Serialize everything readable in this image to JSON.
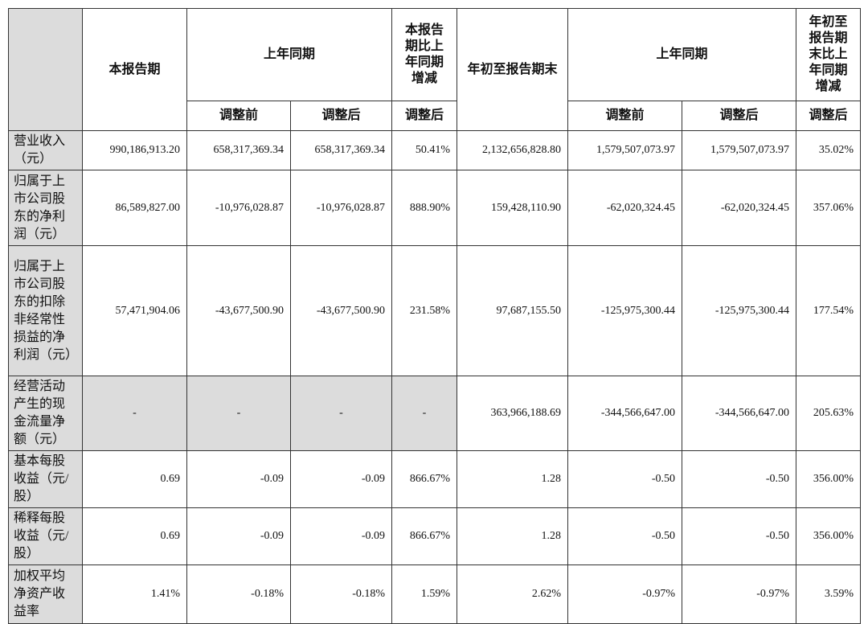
{
  "table": {
    "header_top": [
      "",
      "本报告期",
      "上年同期",
      "本报告期比上年同期增减",
      "年初至报告期末",
      "上年同期",
      "年初至报告期末比上年同期增减"
    ],
    "header_sub": [
      "调整前",
      "调整后",
      "调整后",
      "调整前",
      "调整后",
      "调整后"
    ],
    "rows": [
      {
        "label": "营业收入（元）",
        "values": [
          "990,186,913.20",
          "658,317,369.34",
          "658,317,369.34",
          "50.41%",
          "2,132,656,828.80",
          "1,579,507,073.97",
          "1,579,507,073.97",
          "35.02%"
        ]
      },
      {
        "label": "归属于上市公司股东的净利润（元）",
        "values": [
          "86,589,827.00",
          "-10,976,028.87",
          "-10,976,028.87",
          "888.90%",
          "159,428,110.90",
          "-62,020,324.45",
          "-62,020,324.45",
          "357.06%"
        ]
      },
      {
        "label": "归属于上市公司股东的扣除非经常性损益的净利润（元）",
        "values": [
          "57,471,904.06",
          "-43,677,500.90",
          "-43,677,500.90",
          "231.58%",
          "97,687,155.50",
          "-125,975,300.44",
          "-125,975,300.44",
          "177.54%"
        ]
      },
      {
        "label": "经营活动产生的现金流量净额（元）",
        "values": [
          "-",
          "-",
          "-",
          "-",
          "363,966,188.69",
          "-344,566,647.00",
          "-344,566,647.00",
          "205.63%"
        ]
      },
      {
        "label": "基本每股收益（元/股）",
        "values": [
          "0.69",
          "-0.09",
          "-0.09",
          "866.67%",
          "1.28",
          "-0.50",
          "-0.50",
          "356.00%"
        ]
      },
      {
        "label": "稀释每股收益（元/股）",
        "values": [
          "0.69",
          "-0.09",
          "-0.09",
          "866.67%",
          "1.28",
          "-0.50",
          "-0.50",
          "356.00%"
        ]
      },
      {
        "label": "加权平均净资产收益率",
        "values": [
          "1.41%",
          "-0.18%",
          "-0.18%",
          "1.59%",
          "2.62%",
          "-0.97%",
          "-0.97%",
          "3.59%"
        ]
      }
    ]
  }
}
